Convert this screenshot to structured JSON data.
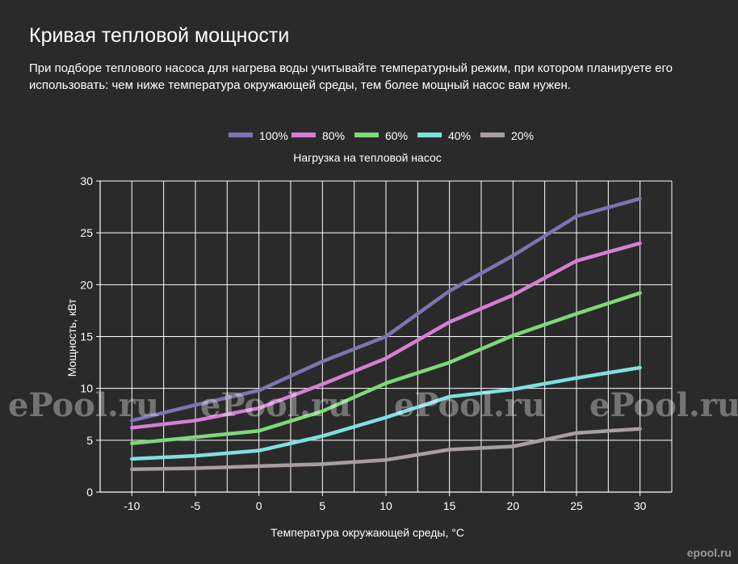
{
  "page": {
    "title": "Кривая тепловой мощности",
    "description": "При подборе теплового насоса для нагрева воды учитывайте температурный режим, при котором планируете его использовать: чем ниже температура окружающей среды, тем более мощный насос вам нужен."
  },
  "watermarks": [
    "ePool.ru",
    "ePool.ru",
    "ePool.ru",
    "ePool.ru"
  ],
  "corner_logo": "epool.ru",
  "chart_data": {
    "type": "line",
    "legend_title": "Нагрузка на тепловой насос",
    "legend_position": "top-center",
    "xlabel": "Температура окружающей среды, °С",
    "ylabel": "Мощность, кВт",
    "x": [
      -10,
      -5,
      0,
      5,
      10,
      15,
      20,
      25,
      30
    ],
    "x_tick_labels": [
      "-10",
      "-5",
      "0",
      "5",
      "10",
      "15",
      "20",
      "25",
      "30"
    ],
    "y_tick_labels": [
      "0",
      "5",
      "10",
      "15",
      "20",
      "25",
      "30"
    ],
    "xlim": [
      -12.5,
      32.5
    ],
    "ylim": [
      0,
      30
    ],
    "grid": true,
    "series": [
      {
        "name": "100%",
        "color": "#7e74b0",
        "values": [
          6.9,
          8.4,
          9.8,
          12.6,
          15.0,
          19.4,
          22.8,
          26.6,
          28.3
        ]
      },
      {
        "name": "80%",
        "color": "#d47fd6",
        "values": [
          6.2,
          6.9,
          8.1,
          10.4,
          12.9,
          16.4,
          19.0,
          22.3,
          24.0
        ]
      },
      {
        "name": "60%",
        "color": "#7fd87a",
        "values": [
          4.7,
          5.3,
          5.9,
          7.8,
          10.5,
          12.5,
          15.1,
          17.2,
          19.2
        ]
      },
      {
        "name": "40%",
        "color": "#7ee0e0",
        "values": [
          3.2,
          3.5,
          4.0,
          5.4,
          7.2,
          9.2,
          9.9,
          11.0,
          12.0
        ]
      },
      {
        "name": "20%",
        "color": "#a89ea6",
        "values": [
          2.2,
          2.3,
          2.5,
          2.7,
          3.1,
          4.1,
          4.4,
          5.7,
          6.1
        ]
      }
    ]
  }
}
